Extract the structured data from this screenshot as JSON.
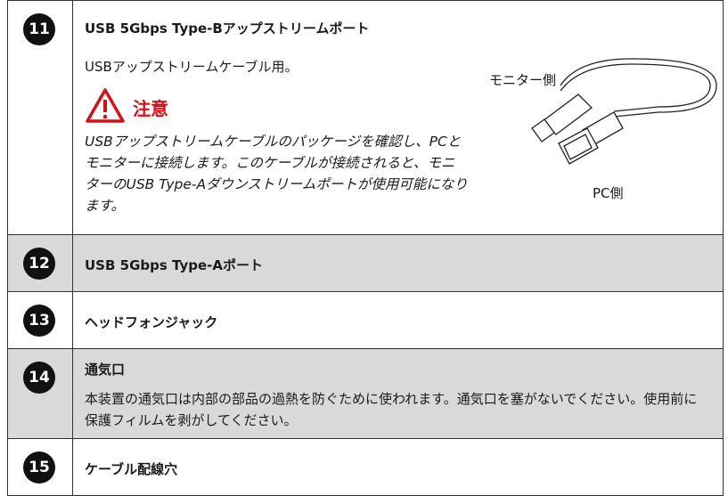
{
  "rows": [
    {
      "number": "11",
      "title": "USB 5Gbps Type-Bアップストリームポート",
      "description": "USBアップストリームケーブル用。",
      "caution": {
        "heading": "注意",
        "text": "USBアップストリームケーブルのパッケージを確認し、PCとモニターに接続します。このケーブルが接続されると、モニターのUSB Type-Aダウンストリームポートが使用可能になります。"
      },
      "figure": {
        "monitor_label": "モニター側",
        "pc_label": "PC側"
      }
    },
    {
      "number": "12",
      "title": "USB 5Gbps Type-Aポート"
    },
    {
      "number": "13",
      "title": "ヘッドフォンジャック"
    },
    {
      "number": "14",
      "title": "通気口",
      "description": "本装置の通気口は内部の部品の過熱を防ぐために使われます。通気口を塞がないでください。使用前に保護フィルムを剥がしてください。"
    },
    {
      "number": "15",
      "title": "ケーブル配線穴"
    }
  ]
}
